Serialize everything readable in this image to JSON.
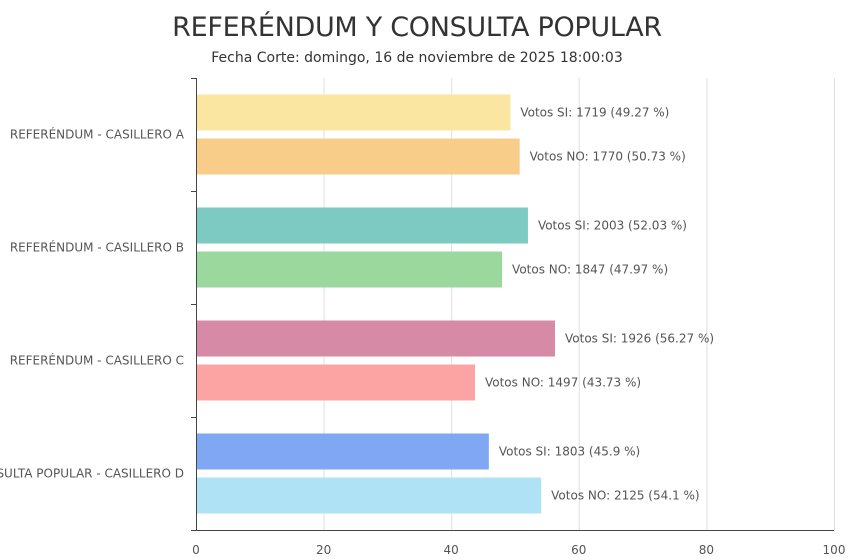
{
  "chart_data": {
    "type": "bar",
    "orientation": "horizontal",
    "title": "REFERÉNDUM Y CONSULTA POPULAR",
    "subtitle": "Fecha Corte: domingo, 16 de noviembre de 2025 18:00:03",
    "xlim": [
      0,
      100
    ],
    "x_ticks": [
      0,
      20,
      40,
      60,
      80,
      100
    ],
    "grid": true,
    "categories": [
      "REFERÉNDUM - CASILLERO A",
      "REFERÉNDUM - CASILLERO B",
      "REFERÉNDUM - CASILLERO C",
      "CONSULTA POPULAR - CASILLERO D"
    ],
    "bars": [
      [
        {
          "value": 49.27,
          "label": "Votos SI: 1719 (49.27 %)",
          "color": "#fae6a0"
        },
        {
          "value": 50.73,
          "label": "Votos NO: 1770 (50.73 %)",
          "color": "#f8cd8a"
        }
      ],
      [
        {
          "value": 52.03,
          "label": "Votos SI: 2003 (52.03 %)",
          "color": "#7ccac2"
        },
        {
          "value": 47.97,
          "label": "Votos NO: 1847 (47.97 %)",
          "color": "#9ad89e"
        }
      ],
      [
        {
          "value": 56.27,
          "label": "Votos SI: 1926 (56.27 %)",
          "color": "#d68aa6"
        },
        {
          "value": 43.73,
          "label": "Votos NO: 1497 (43.73 %)",
          "color": "#fba4a3"
        }
      ],
      [
        {
          "value": 45.9,
          "label": "Votos SI: 1803 (45.9 %)",
          "color": "#80a7f4"
        },
        {
          "value": 54.1,
          "label": "Votos NO: 2125 (54.1 %)",
          "color": "#aee2f4"
        }
      ]
    ]
  }
}
